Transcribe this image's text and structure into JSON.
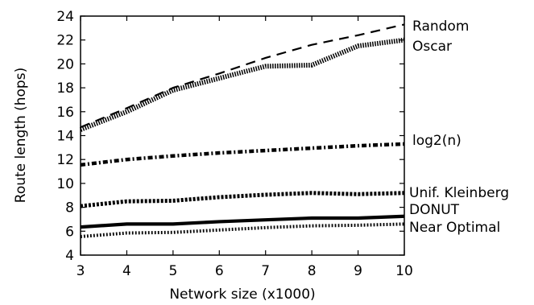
{
  "chart_data": {
    "type": "line",
    "xlabel": "Network size (x1000)",
    "ylabel": "Route length (hops)",
    "xlim": [
      3,
      10
    ],
    "ylim": [
      4,
      24
    ],
    "x_ticks": [
      "3",
      "4",
      "5",
      "6",
      "7",
      "8",
      "9",
      "10"
    ],
    "y_ticks": [
      "4",
      "6",
      "8",
      "10",
      "12",
      "14",
      "16",
      "18",
      "20",
      "22",
      "24"
    ],
    "grid": false,
    "legend": "right-of-plot",
    "x": [
      3,
      4,
      5,
      6,
      7,
      8,
      9,
      10
    ],
    "series": [
      {
        "name": "Random",
        "values": [
          14.7,
          16.3,
          18.0,
          19.2,
          20.5,
          21.6,
          22.4,
          23.3
        ]
      },
      {
        "name": "Oscar",
        "values": [
          14.5,
          16.0,
          17.8,
          18.8,
          19.8,
          19.9,
          21.5,
          22.0
        ]
      },
      {
        "name": "log2(n)",
        "values": [
          11.55,
          12.0,
          12.3,
          12.55,
          12.75,
          12.95,
          13.15,
          13.3
        ]
      },
      {
        "name": "Unif. Kleinberg",
        "values": [
          8.1,
          8.5,
          8.55,
          8.85,
          9.05,
          9.2,
          9.1,
          9.2
        ]
      },
      {
        "name": "DONUT",
        "values": [
          6.35,
          6.6,
          6.6,
          6.8,
          6.95,
          7.1,
          7.1,
          7.25
        ]
      },
      {
        "name": "Near Optimal",
        "values": [
          5.55,
          5.85,
          5.9,
          6.1,
          6.3,
          6.45,
          6.5,
          6.6
        ]
      }
    ]
  }
}
